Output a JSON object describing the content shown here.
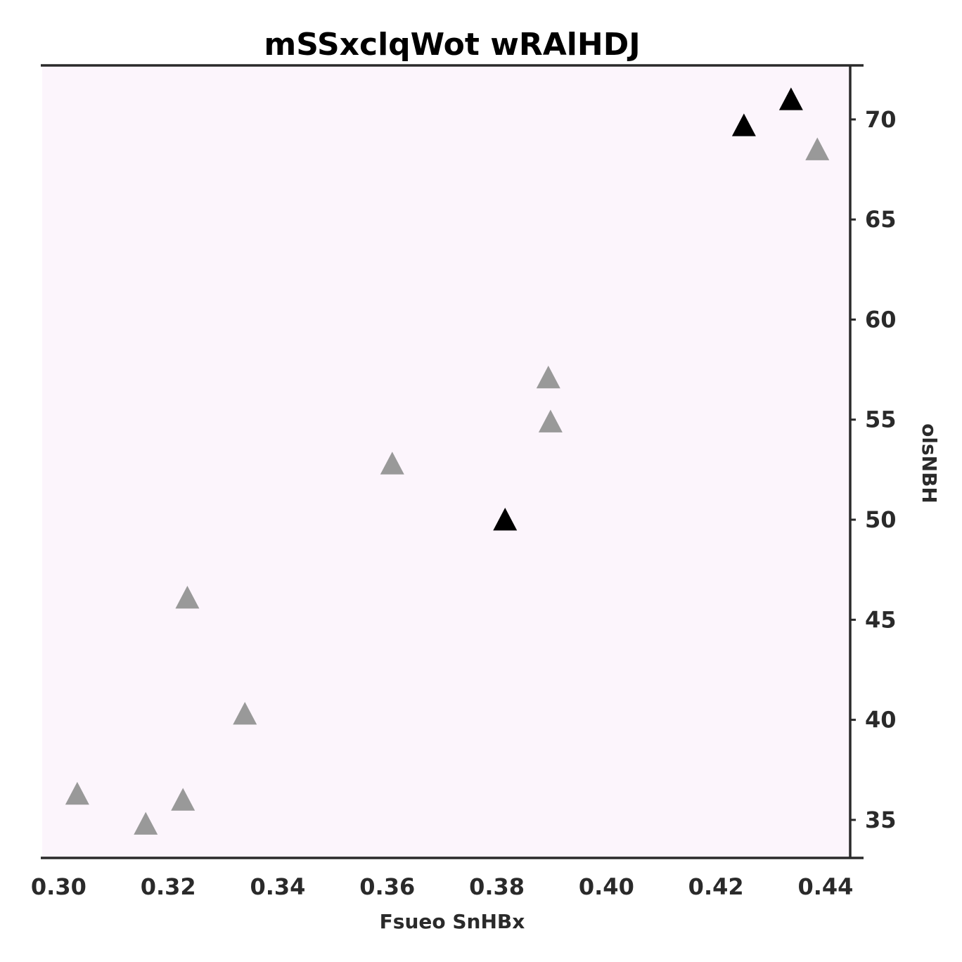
{
  "chart_data": {
    "type": "scatter",
    "title": "mSSxclqWot wRAlHDJ",
    "xlabel": "Fsueo SnHBx",
    "ylabel": "olsNBH",
    "xlim": [
      0.297,
      0.4445
    ],
    "ylim": [
      33.1,
      72.7
    ],
    "xticks": [
      "0.30",
      "0.32",
      "0.34",
      "0.36",
      "0.38",
      "0.40",
      "0.42",
      "0.44"
    ],
    "yticks": [
      "35",
      "40",
      "45",
      "50",
      "55",
      "60",
      "65",
      "70"
    ],
    "y_axis_side": "right",
    "grid": false,
    "legend": "none",
    "background_color": "#fcf5fc",
    "marker": "triangle",
    "series": [
      {
        "color": "#999999",
        "points": [
          {
            "x": 0.3034,
            "y": 36.3
          },
          {
            "x": 0.3159,
            "y": 34.8
          },
          {
            "x": 0.3227,
            "y": 36.0
          },
          {
            "x": 0.3235,
            "y": 46.1
          },
          {
            "x": 0.334,
            "y": 40.3
          },
          {
            "x": 0.3609,
            "y": 52.8
          },
          {
            "x": 0.3894,
            "y": 57.1
          },
          {
            "x": 0.3898,
            "y": 54.9
          },
          {
            "x": 0.4385,
            "y": 68.5
          }
        ]
      },
      {
        "color": "#000000",
        "points": [
          {
            "x": 0.3815,
            "y": 50.0
          },
          {
            "x": 0.4251,
            "y": 69.7
          },
          {
            "x": 0.4337,
            "y": 71.0
          }
        ]
      }
    ]
  }
}
